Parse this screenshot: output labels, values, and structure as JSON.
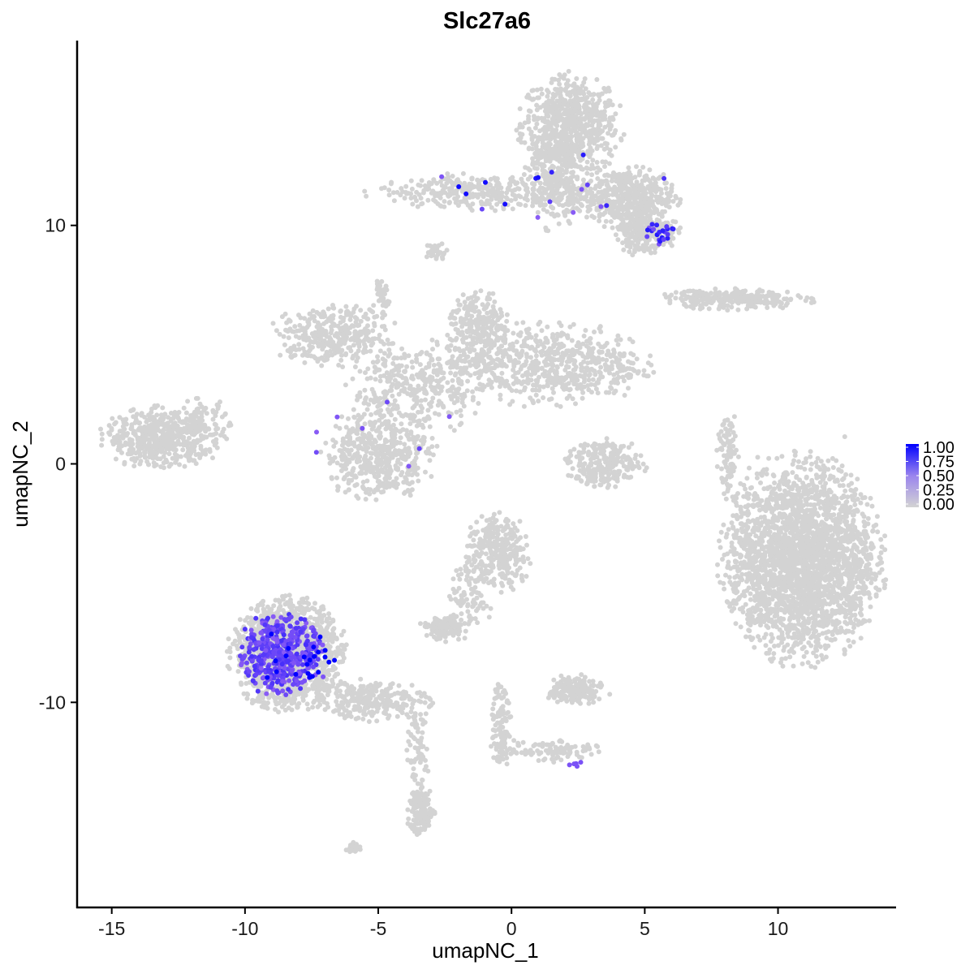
{
  "chart_data": {
    "type": "scatter",
    "title": "Slc27a6",
    "xlabel": "umapNC_1",
    "ylabel": "umapNC_2",
    "xlim": [
      -16.3,
      14.4
    ],
    "ylim": [
      -18.6,
      17.75
    ],
    "xticks": [
      -15,
      -10,
      -5,
      0,
      5,
      10
    ],
    "yticks": [
      -10,
      0,
      10
    ],
    "xtick_labels": [
      "-15",
      "-10",
      "-5",
      "0",
      "5",
      "10"
    ],
    "ytick_labels": [
      "-10",
      "0",
      "10"
    ],
    "grid": false,
    "colors": {
      "low": "#d3d3d3",
      "high": "#0000ff",
      "mid": "#8a5cf5"
    },
    "legend": {
      "position": "right",
      "labels": [
        "1.00",
        "0.75",
        "0.50",
        "0.25",
        "0.00"
      ],
      "range": [
        0,
        1
      ]
    },
    "clusters": [
      {
        "name": "top-main",
        "center": [
          2.2,
          14.2
        ],
        "sd": [
          0.9,
          1.0
        ],
        "n": 700
      },
      {
        "name": "top-stem",
        "center": [
          1.6,
          12.0
        ],
        "sd": [
          0.5,
          1.0
        ],
        "n": 250
      },
      {
        "name": "top-left-arm",
        "center": [
          -1.0,
          11.4
        ],
        "sd": [
          2.0,
          0.35
        ],
        "n": 350
      },
      {
        "name": "top-right",
        "center": [
          4.3,
          11.2
        ],
        "sd": [
          0.9,
          0.6
        ],
        "n": 450
      },
      {
        "name": "top-bottom",
        "center": [
          5.0,
          9.8
        ],
        "sd": [
          0.6,
          0.5
        ],
        "n": 250
      },
      {
        "name": "top-small",
        "center": [
          -2.8,
          8.9
        ],
        "sd": [
          0.2,
          0.2
        ],
        "n": 30
      },
      {
        "name": "center-right-arm",
        "center": [
          1.4,
          4.2
        ],
        "sd": [
          1.8,
          0.8
        ],
        "n": 650
      },
      {
        "name": "center-top",
        "center": [
          -1.2,
          5.6
        ],
        "sd": [
          0.6,
          0.8
        ],
        "n": 250
      },
      {
        "name": "center-left-lobe",
        "center": [
          -6.7,
          5.4
        ],
        "sd": [
          1.1,
          0.6
        ],
        "n": 350
      },
      {
        "name": "center-stem",
        "center": [
          -3.5,
          3.2
        ],
        "sd": [
          1.2,
          0.9
        ],
        "n": 350
      },
      {
        "name": "center-round",
        "center": [
          -5.0,
          0.4
        ],
        "sd": [
          1.0,
          0.9
        ],
        "n": 500
      },
      {
        "name": "center-top-spike",
        "center": [
          -4.9,
          6.9
        ],
        "sd": [
          0.15,
          0.4
        ],
        "n": 40
      },
      {
        "name": "left-blob",
        "center": [
          -13.2,
          1.1
        ],
        "sd": [
          1.0,
          0.6
        ],
        "n": 500
      },
      {
        "name": "left-blob-tail",
        "center": [
          -11.6,
          1.5
        ],
        "sd": [
          0.5,
          0.6
        ],
        "n": 100
      },
      {
        "name": "right-strip",
        "center": [
          8.3,
          6.9
        ],
        "sd": [
          1.4,
          0.2
        ],
        "n": 260
      },
      {
        "name": "mid-small",
        "center": [
          3.5,
          0.0
        ],
        "sd": [
          0.7,
          0.5
        ],
        "n": 250
      },
      {
        "name": "right-thin",
        "center": [
          8.1,
          0.4
        ],
        "sd": [
          0.2,
          0.9
        ],
        "n": 90
      },
      {
        "name": "right-big",
        "center": [
          10.9,
          -4.0
        ],
        "sd": [
          1.4,
          2.0
        ],
        "n": 2600
      },
      {
        "name": "lower-center",
        "center": [
          -0.5,
          -3.7
        ],
        "sd": [
          0.6,
          0.8
        ],
        "n": 300
      },
      {
        "name": "lower-center-arm",
        "center": [
          -1.6,
          -5.6
        ],
        "sd": [
          0.4,
          0.8
        ],
        "n": 100
      },
      {
        "name": "lower-small-a",
        "center": [
          -2.6,
          -6.9
        ],
        "sd": [
          0.4,
          0.25
        ],
        "n": 120
      },
      {
        "name": "lower-small-b",
        "center": [
          2.4,
          -9.5
        ],
        "sd": [
          0.5,
          0.3
        ],
        "n": 200
      },
      {
        "name": "bottom-left-big",
        "center": [
          -8.4,
          -8.0
        ],
        "sd": [
          1.0,
          1.1
        ],
        "n": 1400
      },
      {
        "name": "bottom-left-tail",
        "center": [
          -5.2,
          -9.9
        ],
        "sd": [
          1.0,
          0.4
        ],
        "n": 260
      },
      {
        "name": "thin-line",
        "center": [
          -3.5,
          -12.5
        ],
        "sd": [
          0.2,
          1.2
        ],
        "n": 90
      },
      {
        "name": "thin-line-end",
        "center": [
          -3.4,
          -14.6
        ],
        "sd": [
          0.25,
          0.5
        ],
        "n": 120
      },
      {
        "name": "lower-line",
        "center": [
          -0.4,
          -10.8
        ],
        "sd": [
          0.2,
          0.9
        ],
        "n": 100
      },
      {
        "name": "lower-line-arm",
        "center": [
          1.2,
          -12.0
        ],
        "sd": [
          1.0,
          0.25
        ],
        "n": 100
      },
      {
        "name": "lower-tiny",
        "center": [
          -5.9,
          -16.1
        ],
        "sd": [
          0.2,
          0.1
        ],
        "n": 25
      }
    ],
    "expressed_groups": [
      {
        "name": "bottom-left-cluster",
        "center": [
          -8.6,
          -8.0
        ],
        "sd": [
          0.8,
          0.9
        ],
        "n": 420,
        "value_range": [
          0.6,
          0.8
        ]
      },
      {
        "name": "bottom-left-high",
        "center": [
          -8.0,
          -8.1
        ],
        "sd": [
          0.8,
          0.7
        ],
        "n": 22,
        "value_range": [
          1.0,
          1.0
        ]
      },
      {
        "name": "top-right-patch",
        "center": [
          5.5,
          9.7
        ],
        "sd": [
          0.3,
          0.25
        ],
        "n": 22,
        "value_range": [
          0.6,
          0.9
        ]
      },
      {
        "name": "top-scattered",
        "center": [
          1.0,
          11.5
        ],
        "sd": [
          2.5,
          0.8
        ],
        "n": 18,
        "value_range": [
          0.6,
          1.0
        ]
      },
      {
        "name": "center-scattered",
        "center": [
          -5.0,
          2.0
        ],
        "sd": [
          1.8,
          1.8
        ],
        "n": 8,
        "value_range": [
          0.6,
          0.7
        ]
      },
      {
        "name": "lower-right-patch",
        "center": [
          2.4,
          -12.6
        ],
        "sd": [
          0.15,
          0.1
        ],
        "n": 5,
        "value_range": [
          0.6,
          0.7
        ]
      }
    ]
  }
}
